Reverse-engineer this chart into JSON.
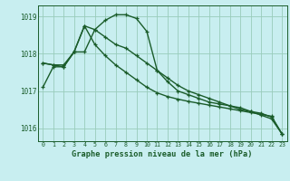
{
  "title": "Graphe pression niveau de la mer (hPa)",
  "background_color": "#c8eef0",
  "grid_color": "#99ccbb",
  "line_color": "#1a5c2a",
  "x": [
    0,
    1,
    2,
    3,
    4,
    5,
    6,
    7,
    8,
    9,
    10,
    11,
    12,
    13,
    14,
    15,
    16,
    17,
    18,
    19,
    20,
    21,
    22,
    23
  ],
  "series1": [
    1017.1,
    1017.65,
    1017.65,
    1018.05,
    1018.05,
    1018.65,
    1018.9,
    1019.05,
    1019.05,
    1018.95,
    1018.6,
    1017.55,
    1017.25,
    1017.0,
    1016.9,
    1016.8,
    1016.7,
    1016.65,
    1016.6,
    1016.55,
    1016.45,
    1016.35,
    1016.25,
    1015.85
  ],
  "series2": [
    1017.75,
    1017.7,
    1017.7,
    1018.05,
    1018.75,
    1018.25,
    1017.95,
    1017.7,
    1017.5,
    1017.3,
    1017.1,
    1016.95,
    1016.85,
    1016.78,
    1016.72,
    1016.67,
    1016.62,
    1016.57,
    1016.52,
    1016.47,
    1016.42,
    1016.37,
    1016.32,
    1015.85
  ],
  "series3": [
    1017.75,
    1017.7,
    1017.65,
    1018.05,
    1018.75,
    1018.65,
    1018.45,
    1018.25,
    1018.15,
    1017.95,
    1017.75,
    1017.55,
    1017.35,
    1017.15,
    1017.0,
    1016.9,
    1016.8,
    1016.7,
    1016.6,
    1016.5,
    1016.45,
    1016.4,
    1016.3,
    1015.85
  ],
  "ylim": [
    1015.65,
    1019.3
  ],
  "yticks": [
    1016,
    1017,
    1018,
    1019
  ],
  "xticks": [
    0,
    1,
    2,
    3,
    4,
    5,
    6,
    7,
    8,
    9,
    10,
    11,
    12,
    13,
    14,
    15,
    16,
    17,
    18,
    19,
    20,
    21,
    22,
    23
  ]
}
